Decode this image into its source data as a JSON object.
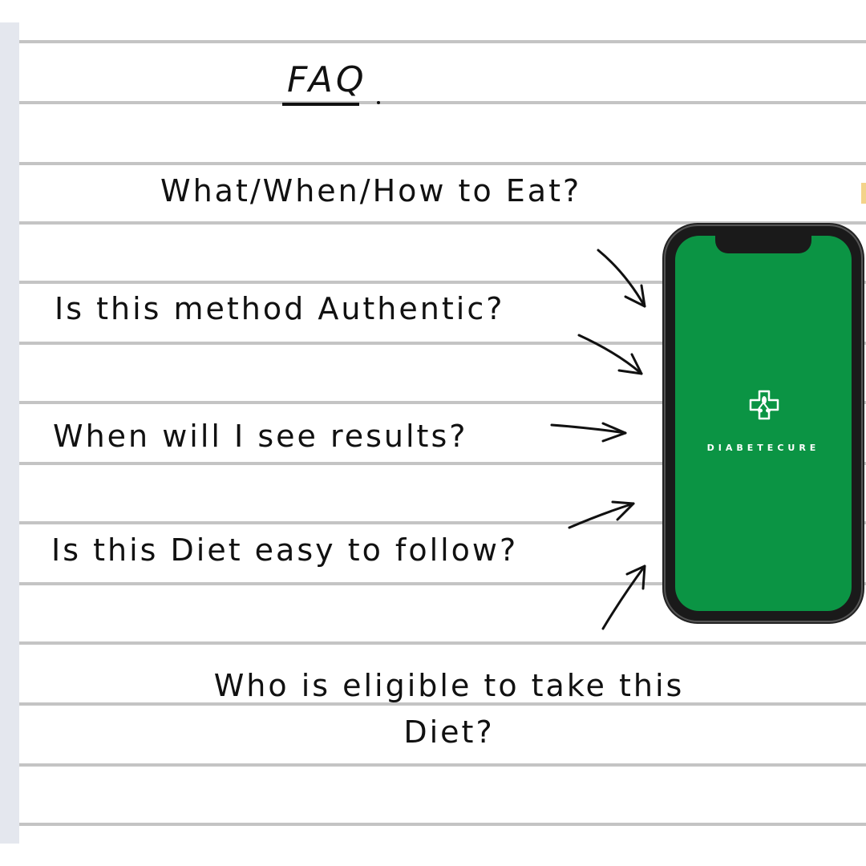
{
  "faq": {
    "title": "FAQ",
    "questions": [
      "What/When/How to Eat?",
      "Is this method Authentic?",
      "When will I see results?",
      "Is this Diet easy to follow?",
      "Who is eligible to take this Diet?"
    ]
  },
  "phone": {
    "brand": "DIABETECURE",
    "logo_icon": "medical-cross-leaf-icon",
    "screen_color": "#0b9444"
  },
  "colors": {
    "ruled_line": "#c4c4c4",
    "ink": "#111111",
    "left_strip": "#e4e7ee"
  }
}
